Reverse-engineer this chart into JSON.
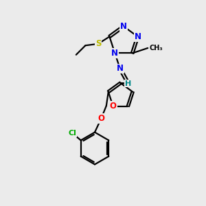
{
  "bg_color": "#ebebeb",
  "atom_colors": {
    "N": "#0000ee",
    "O": "#ff0000",
    "S": "#bbbb00",
    "Cl": "#00aa00",
    "H": "#008888",
    "C": "#000000"
  },
  "bond_color": "#000000",
  "bond_width": 1.6
}
